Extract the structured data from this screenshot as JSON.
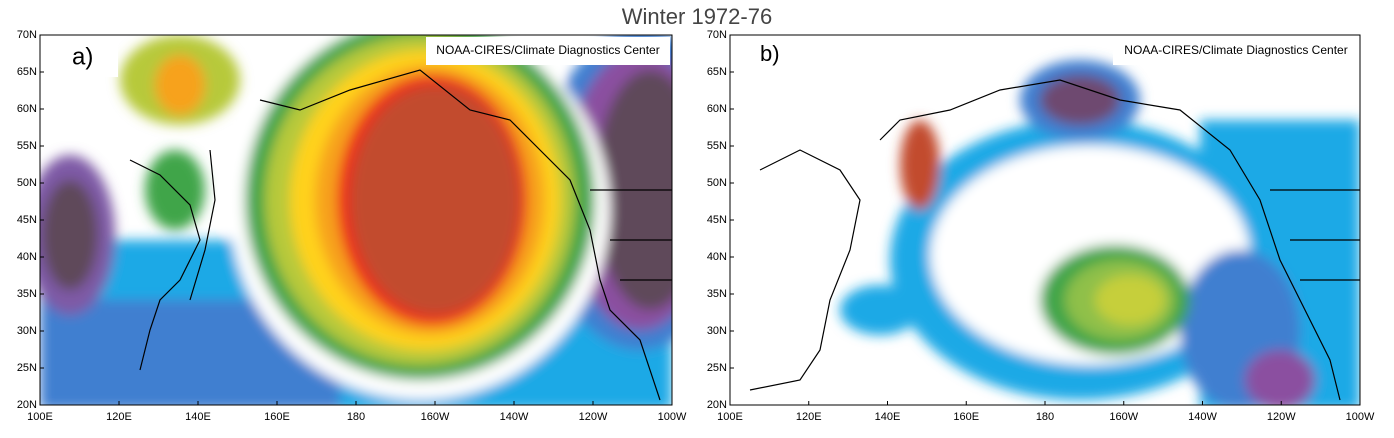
{
  "title": "Winter 1972-76",
  "panels": [
    {
      "label": "a)",
      "credit": "NOAA-CIRES/Climate Diagnostics Center",
      "lat_labels": [
        "70N",
        "65N",
        "60N",
        "55N",
        "50N",
        "45N",
        "40N",
        "35N",
        "30N",
        "25N",
        "20N"
      ],
      "lon_labels": [
        "100E",
        "120E",
        "140E",
        "160E",
        "180",
        "160W",
        "140W",
        "120W",
        "100W"
      ]
    },
    {
      "label": "b)",
      "credit": "NOAA-CIRES/Climate Diagnostics Center",
      "lat_labels": [
        "70N",
        "65N",
        "60N",
        "55N",
        "50N",
        "45N",
        "40N",
        "35N",
        "30N",
        "25N",
        "20N"
      ],
      "lon_labels": [
        "100E",
        "120E",
        "140E",
        "160E",
        "180",
        "160W",
        "140W",
        "120W",
        "100W"
      ]
    }
  ]
}
